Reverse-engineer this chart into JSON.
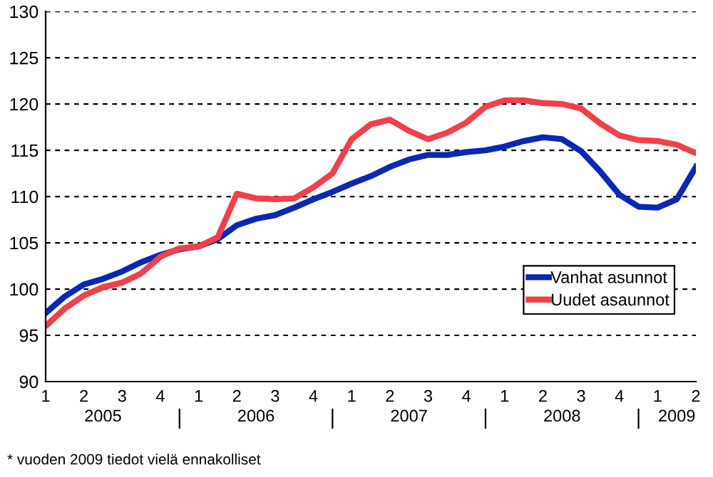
{
  "chart_data": {
    "type": "line",
    "categories": [
      "1",
      null,
      "2",
      null,
      "3",
      null,
      "4",
      null,
      "1",
      null,
      "2",
      null,
      "3",
      null,
      "4",
      null,
      "1",
      null,
      "2",
      null,
      "3",
      null,
      "4",
      null,
      "1",
      null,
      "2",
      null,
      "3",
      null,
      "4",
      null,
      "1",
      null,
      "2"
    ],
    "series": [
      {
        "name": "Vanhat asunnot",
        "color": "#0a28b4",
        "values": [
          97.4,
          99.2,
          100.5,
          101.1,
          101.9,
          102.9,
          103.7,
          104.3,
          104.6,
          105.4,
          106.9,
          107.6,
          108.0,
          108.8,
          109.7,
          110.5,
          111.4,
          112.2,
          113.2,
          114.0,
          114.5,
          114.5,
          114.8,
          115.0,
          115.4,
          116.0,
          116.4,
          116.2,
          114.9,
          112.7,
          110.2,
          108.9,
          108.8,
          109.7,
          113.2
        ]
      },
      {
        "name": "Uudet asaunnot",
        "color": "#f0404a",
        "values": [
          96.0,
          97.9,
          99.3,
          100.2,
          100.7,
          101.7,
          103.5,
          104.4,
          104.6,
          105.6,
          110.3,
          109.8,
          109.7,
          109.8,
          111.0,
          112.5,
          116.2,
          117.8,
          118.3,
          117.1,
          116.2,
          116.9,
          118.0,
          119.7,
          120.4,
          120.4,
          120.1,
          120.0,
          119.5,
          117.9,
          116.6,
          116.1,
          116.0,
          115.6,
          114.7
        ]
      }
    ],
    "ylim": [
      90,
      130
    ],
    "yticks": [
      90,
      95,
      100,
      105,
      110,
      115,
      120,
      125,
      130
    ],
    "grid": "y",
    "legend": "bottom right",
    "marker": "none",
    "line_style": "solid",
    "annotations": [
      "2005",
      "2006",
      "2007",
      "2008",
      "2009",
      "* vuoden 2009 tiedot vielä ennakolliset"
    ]
  }
}
